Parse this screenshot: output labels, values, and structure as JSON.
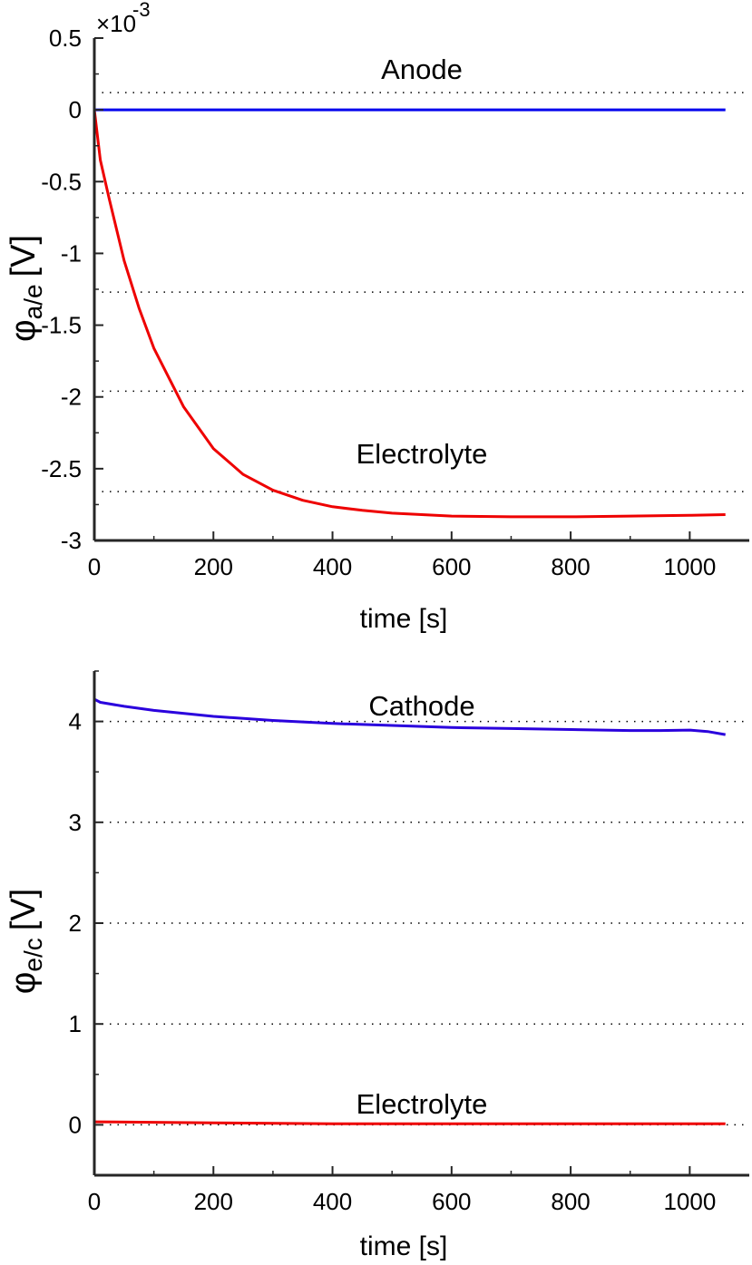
{
  "chart_data": [
    {
      "type": "line",
      "xlabel": "time [s]",
      "ylabel_main": "φ",
      "ylabel_sub": "a/e",
      "ylabel_unit": "[V]",
      "y_exponent_prefix": "×10",
      "y_exponent": "-3",
      "xlim": [
        0,
        1100
      ],
      "ylim": [
        -3.0,
        0.5
      ],
      "xticks": [
        0,
        200,
        400,
        600,
        800,
        1000
      ],
      "xtick_labels": [
        "0",
        "200",
        "400",
        "600",
        "800",
        "1000"
      ],
      "yticks": [
        0.5,
        0,
        -0.5,
        -1,
        -1.5,
        -2,
        -2.5,
        -3
      ],
      "ytick_labels": [
        "0.5",
        "0",
        "-0.5",
        "-1",
        "-1.5",
        "-2",
        "-2.5",
        "-3"
      ],
      "grid_y_dotted": [
        0.12,
        -0.58,
        -1.27,
        -1.96,
        -2.66
      ],
      "annotations": [
        {
          "text": "Anode",
          "x": 550,
          "y": 0.28
        },
        {
          "text": "Electrolyte",
          "x": 550,
          "y": -2.4
        }
      ],
      "series": [
        {
          "color": "#0000ee",
          "x": [
            0,
            1060
          ],
          "y": [
            0,
            0
          ]
        },
        {
          "color": "#ee0000",
          "x": [
            0,
            10,
            25,
            50,
            75,
            100,
            150,
            200,
            250,
            300,
            350,
            400,
            450,
            500,
            600,
            700,
            800,
            900,
            1000,
            1060
          ],
          "y": [
            0,
            -0.35,
            -0.62,
            -1.05,
            -1.38,
            -1.66,
            -2.07,
            -2.36,
            -2.54,
            -2.65,
            -2.72,
            -2.765,
            -2.79,
            -2.81,
            -2.83,
            -2.835,
            -2.835,
            -2.83,
            -2.825,
            -2.82
          ]
        }
      ]
    },
    {
      "type": "line",
      "xlabel": "time [s]",
      "ylabel_main": "φ",
      "ylabel_sub": "e/c",
      "ylabel_unit": "[V]",
      "xlim": [
        0,
        1100
      ],
      "ylim": [
        -0.5,
        4.5
      ],
      "xticks": [
        0,
        200,
        400,
        600,
        800,
        1000
      ],
      "xtick_labels": [
        "0",
        "200",
        "400",
        "600",
        "800",
        "1000"
      ],
      "yticks": [
        0,
        1,
        2,
        3,
        4
      ],
      "ytick_labels": [
        "0",
        "1",
        "2",
        "3",
        "4"
      ],
      "grid_y_dotted": [
        0,
        1,
        2,
        3,
        4
      ],
      "annotations": [
        {
          "text": "Cathode",
          "x": 550,
          "y": 4.15
        },
        {
          "text": "Electrolyte",
          "x": 550,
          "y": 0.2
        }
      ],
      "series": [
        {
          "color": "#2a00dd",
          "x": [
            0,
            10,
            50,
            100,
            200,
            300,
            400,
            500,
            600,
            700,
            800,
            900,
            950,
            1000,
            1030,
            1060
          ],
          "y": [
            4.22,
            4.19,
            4.15,
            4.11,
            4.05,
            4.01,
            3.98,
            3.96,
            3.94,
            3.93,
            3.92,
            3.91,
            3.91,
            3.915,
            3.9,
            3.87
          ]
        },
        {
          "color": "#ee0000",
          "x": [
            0,
            200,
            400,
            600,
            800,
            1000,
            1060
          ],
          "y": [
            0.03,
            0.02,
            0.01,
            0.01,
            0.01,
            0.01,
            0.01
          ]
        }
      ]
    }
  ]
}
